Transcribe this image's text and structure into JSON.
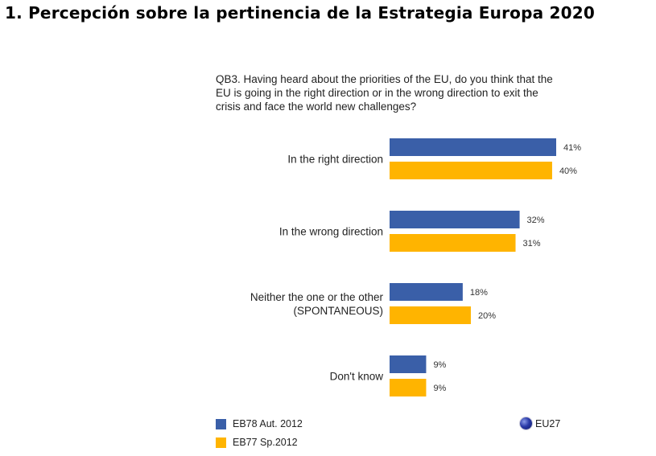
{
  "page": {
    "title": "1. Percepción sobre la pertinencia de la Estrategia Europa 2020"
  },
  "question": {
    "lines": [
      "QB3. Having heard about the priorities of the EU, do you think that the",
      "EU is going in the right direction or in the wrong direction to exit the",
      "crisis and face the world new challenges?"
    ]
  },
  "legend": {
    "eb78": "EB78 Aut. 2012",
    "eb77": "EB77 Sp.2012",
    "scope": "EU27",
    "scope_icon": "globe-icon"
  },
  "colors": {
    "eb78": "#3a5fa8",
    "eb77": "#ffb400"
  },
  "chart_data": {
    "type": "bar",
    "orientation": "horizontal",
    "categories": [
      [
        "In the right direction"
      ],
      [
        "In the wrong direction"
      ],
      [
        "Neither the one or the other",
        "(SPONTANEOUS)"
      ],
      [
        "Don't know"
      ]
    ],
    "series": [
      {
        "name": "EB78 Aut. 2012",
        "values": [
          41,
          32,
          18,
          9
        ],
        "labels": [
          "41%",
          "32%",
          "18%",
          "9%"
        ]
      },
      {
        "name": "EB77 Sp.2012",
        "values": [
          40,
          31,
          20,
          9
        ],
        "labels": [
          "40%",
          "31%",
          "20%",
          "9%"
        ]
      }
    ],
    "xlim": [
      0,
      41
    ],
    "grid": false,
    "legend_position": "bottom"
  }
}
